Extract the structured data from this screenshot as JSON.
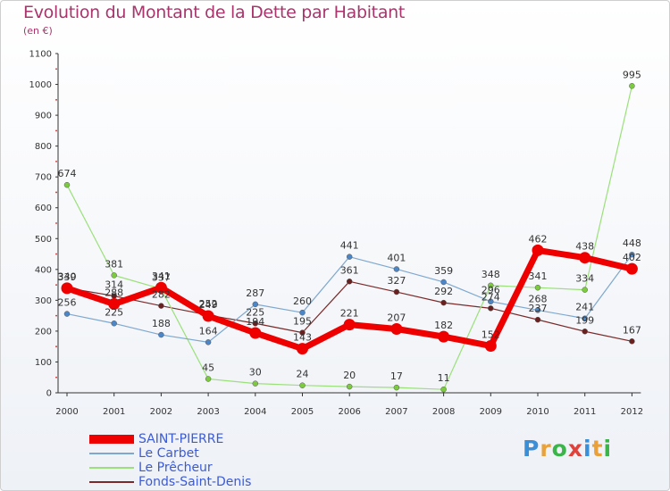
{
  "title": "Evolution du Montant de la Dette par Habitant",
  "subtitle": "(en €)",
  "logo": {
    "text": "Proxiti",
    "colors": [
      "#3b8fd6",
      "#e9a23b",
      "#3bb44a",
      "#e0413b",
      "#3b8fd6",
      "#e9a23b",
      "#3bb44a"
    ]
  },
  "chart_data": {
    "type": "line",
    "title": "Evolution du Montant de la Dette par Habitant",
    "ylabel": "(en €)",
    "xlabel": "",
    "ylim": [
      0,
      1100
    ],
    "yticks": [
      0,
      100,
      200,
      300,
      400,
      500,
      600,
      700,
      800,
      900,
      1000,
      1100
    ],
    "grid": false,
    "legend": "bottom-left",
    "categories": [
      "2000",
      "2001",
      "2002",
      "2003",
      "2004",
      "2005",
      "2006",
      "2007",
      "2008",
      "2009",
      "2010",
      "2011",
      "2012"
    ],
    "series": [
      {
        "name": "Fonds-Saint-Denis",
        "color": "#7a2a2a",
        "width": 1.2,
        "markerColor": "#6b2020",
        "values": [
          340,
          314,
          282,
          252,
          225,
          195,
          361,
          327,
          292,
          274,
          237,
          199,
          167
        ],
        "labels": [
          "340",
          "314",
          "282",
          "252",
          "225",
          "195",
          "361",
          "327",
          "292",
          "274",
          "237",
          "199",
          "167"
        ]
      },
      {
        "name": "Le Prêcheur",
        "color": "#9be07a",
        "width": 1.2,
        "markerColor": "#7ccb3f",
        "values": [
          674,
          381,
          337,
          45,
          30,
          24,
          20,
          17,
          11,
          348,
          341,
          334,
          995
        ],
        "labels": [
          "674",
          "381",
          "337",
          "45",
          "30",
          "24",
          "20",
          "17",
          "11",
          "348",
          "341",
          "334",
          "995"
        ]
      },
      {
        "name": "Le Carbet",
        "color": "#7fa8cf",
        "width": 1.2,
        "markerColor": "#4a86c8",
        "values": [
          256,
          225,
          188,
          164,
          287,
          260,
          441,
          401,
          359,
          296,
          268,
          241,
          448
        ],
        "labels": [
          "256",
          "225",
          "188",
          "164",
          "287",
          "260",
          "441",
          "401",
          "359",
          "296",
          "268",
          "241",
          "448"
        ]
      },
      {
        "name": "SAINT-PIERRE",
        "color": "#ee0000",
        "width": 7,
        "markerColor": "#ee0000",
        "values": [
          339,
          288,
          341,
          249,
          194,
          143,
          221,
          207,
          182,
          152,
          462,
          438,
          402
        ],
        "labels": [
          "339",
          "288",
          "341",
          "249",
          "194",
          "143",
          "221",
          "207",
          "182",
          "152",
          "462",
          "438",
          "402"
        ]
      }
    ]
  }
}
